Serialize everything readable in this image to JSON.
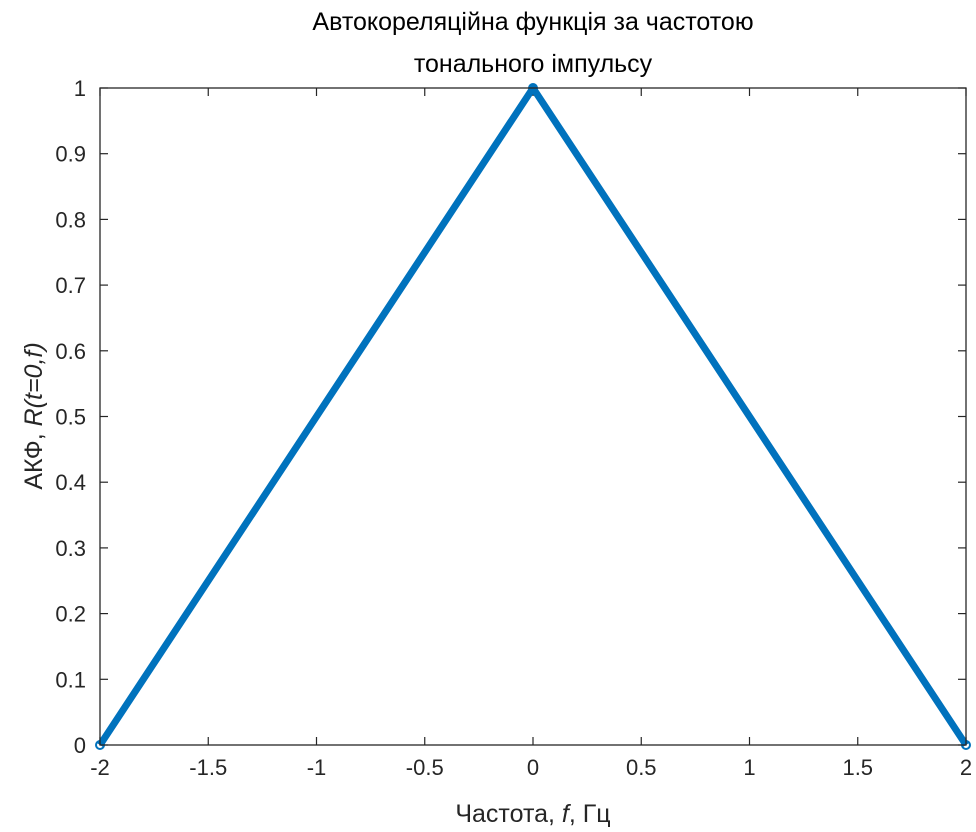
{
  "chart_data": {
    "type": "line",
    "title_lines": [
      "Автокореляційна функція за частотою",
      "тонального імпульсу"
    ],
    "xlabel": {
      "prefix": "Частота, ",
      "var": "f",
      "suffix": ", Гц"
    },
    "ylabel": {
      "prefix": "АКФ, ",
      "var": "R(t=0,f)"
    },
    "xlim": [
      -2,
      2
    ],
    "ylim": [
      0,
      1
    ],
    "x_ticks": [
      -2,
      -1.5,
      -1,
      -0.5,
      0,
      0.5,
      1,
      1.5,
      2
    ],
    "x_tick_labels": [
      "-2",
      "-1.5",
      "-1",
      "-0.5",
      "0",
      "0.5",
      "1",
      "1.5",
      "2"
    ],
    "y_ticks": [
      0,
      0.1,
      0.2,
      0.3,
      0.4,
      0.5,
      0.6,
      0.7,
      0.8,
      0.9,
      1
    ],
    "y_tick_labels": [
      "0",
      "0.1",
      "0.2",
      "0.3",
      "0.4",
      "0.5",
      "0.6",
      "0.7",
      "0.8",
      "0.9",
      "1"
    ],
    "grid": false,
    "series": [
      {
        "x": [
          -2,
          0,
          2
        ],
        "y": [
          0,
          1,
          0
        ],
        "color": "#0072BD"
      }
    ],
    "axis_color": "#262626"
  }
}
